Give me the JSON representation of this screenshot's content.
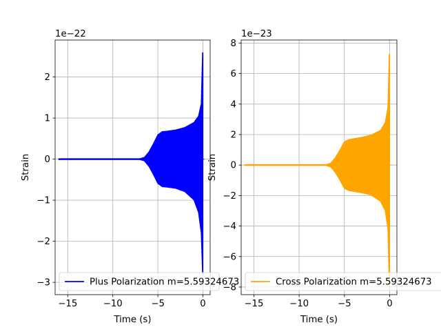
{
  "chart_data": [
    {
      "type": "line",
      "title": "",
      "xlabel": "Time (s)",
      "ylabel": "Strain",
      "offset_text": "1e−22",
      "scale": 1e-22,
      "xlim": [
        -16.4,
        0.8
      ],
      "ylim": [
        -3.3,
        2.9
      ],
      "xticks": [
        -15,
        -10,
        -5,
        0
      ],
      "xtick_labels": [
        "−15",
        "−10",
        "−5",
        "0"
      ],
      "yticks": [
        -3,
        -2,
        -1,
        0,
        1,
        2
      ],
      "ytick_labels": [
        "−3",
        "−2",
        "−1",
        "0",
        "1",
        "2"
      ],
      "grid": true,
      "legend_position": "lower-left",
      "series": [
        {
          "name": "Plus Polarization m=5.59324673",
          "color": "#0000ff",
          "x_start": -16.0,
          "x_end": 0.0,
          "envelope": {
            "time": [
              -16.0,
              -12.0,
              -9.0,
              -7.0,
              -6.5,
              -6.0,
              -5.5,
              -5.0,
              -4.5,
              -4.0,
              -3.0,
              -2.0,
              -1.0,
              -0.5,
              -0.2,
              -0.05,
              0.0
            ],
            "upper": [
              0.02,
              0.02,
              0.02,
              0.02,
              0.05,
              0.18,
              0.38,
              0.6,
              0.68,
              0.69,
              0.72,
              0.78,
              0.9,
              1.05,
              1.35,
              2.6,
              2.6
            ],
            "lower": [
              -0.02,
              -0.02,
              -0.02,
              -0.02,
              -0.05,
              -0.18,
              -0.38,
              -0.6,
              -0.68,
              -0.69,
              -0.72,
              -0.8,
              -1.0,
              -1.3,
              -1.8,
              -2.8,
              -2.8
            ]
          }
        }
      ]
    },
    {
      "type": "line",
      "title": "",
      "xlabel": "Time (s)",
      "ylabel": "Strain",
      "offset_text": "1e−23",
      "scale": 1e-23,
      "xlim": [
        -16.4,
        0.8
      ],
      "ylim": [
        -8.5,
        8.2
      ],
      "xticks": [
        -15,
        -10,
        -5,
        0
      ],
      "xtick_labels": [
        "−15",
        "−10",
        "−5",
        "0"
      ],
      "yticks": [
        -8,
        -6,
        -4,
        -2,
        0,
        2,
        4,
        6,
        8
      ],
      "ytick_labels": [
        "−8",
        "−6",
        "−4",
        "−2",
        "0",
        "2",
        "4",
        "6",
        "8"
      ],
      "grid": true,
      "legend_position": "lower-left",
      "series": [
        {
          "name": "Cross Polarization m=5.59324673",
          "color": "#ffa500",
          "x_start": -16.0,
          "x_end": 0.0,
          "envelope": {
            "time": [
              -16.0,
              -12.0,
              -9.0,
              -7.0,
              -6.5,
              -6.0,
              -5.5,
              -5.0,
              -4.5,
              -4.0,
              -3.0,
              -2.0,
              -1.0,
              -0.5,
              -0.2,
              -0.05,
              0.0
            ],
            "upper": [
              0.05,
              0.05,
              0.05,
              0.05,
              0.15,
              0.5,
              1.0,
              1.55,
              1.7,
              1.75,
              1.85,
              2.0,
              2.3,
              2.8,
              3.8,
              7.3,
              7.3
            ],
            "lower": [
              -0.05,
              -0.05,
              -0.05,
              -0.05,
              -0.15,
              -0.5,
              -1.0,
              -1.55,
              -1.7,
              -1.75,
              -1.85,
              -2.0,
              -2.4,
              -3.0,
              -4.2,
              -8.0,
              -8.0
            ]
          }
        }
      ]
    }
  ]
}
